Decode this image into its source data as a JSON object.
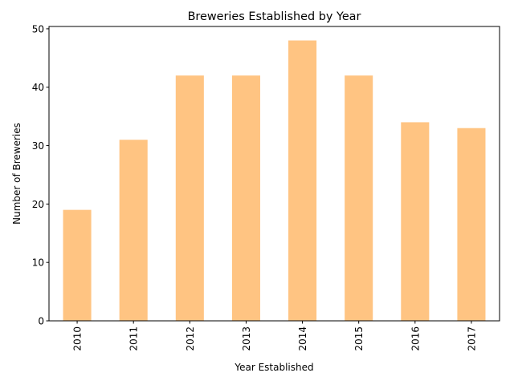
{
  "chart_data": {
    "type": "bar",
    "title": "Breweries Established by Year",
    "xlabel": "Year Established",
    "ylabel": "Number of Breweries",
    "categories": [
      "2010",
      "2011",
      "2012",
      "2013",
      "2014",
      "2015",
      "2016",
      "2017"
    ],
    "values": [
      19,
      31,
      42,
      42,
      48,
      42,
      34,
      33
    ],
    "ylim": [
      0,
      50.4
    ],
    "yticks": [
      0,
      10,
      20,
      30,
      40,
      50
    ],
    "bar_color": "#ffc482",
    "grid": false,
    "legend": "none"
  }
}
